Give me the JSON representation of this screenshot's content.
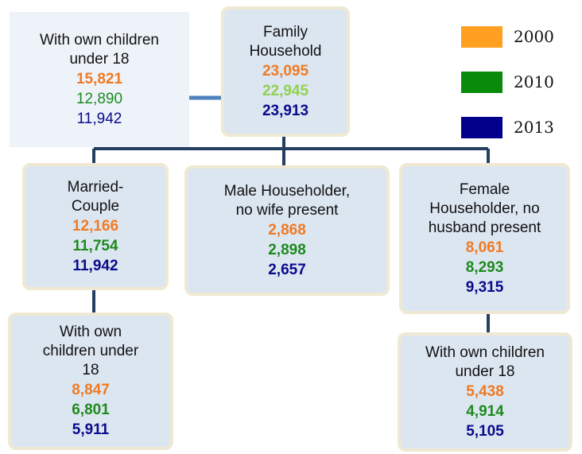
{
  "nodes": [
    {
      "label": [
        "With own children",
        "under 18"
      ],
      "values": [
        "15,821",
        "12,890",
        "11,942"
      ]
    },
    {
      "label": [
        "Family",
        "Household"
      ],
      "values": [
        "23,095",
        "22,945",
        "23,913"
      ]
    },
    {
      "label": [
        "Married-",
        "Couple"
      ],
      "values": [
        "12,166",
        "11,754",
        "11,942"
      ]
    },
    {
      "label": [
        "Male Householder,",
        "no wife present"
      ],
      "values": [
        "2,868",
        "2,898",
        "2,657"
      ]
    },
    {
      "label": [
        "Female",
        "Householder, no",
        "husband present"
      ],
      "values": [
        "8,061",
        "8,293",
        "9,315"
      ]
    },
    {
      "label": [
        "With own",
        "children under",
        "18"
      ],
      "values": [
        "8,847",
        "6,801",
        "5,911"
      ]
    },
    {
      "label": [
        "With own children",
        "under 18"
      ],
      "values": [
        "5,438",
        "4,914",
        "5,105"
      ]
    }
  ],
  "legend": [
    {
      "year": "2000",
      "color": "#ffa020"
    },
    {
      "year": "2010",
      "color": "#0a8a0a"
    },
    {
      "year": "2013",
      "color": "#00008b"
    }
  ]
}
